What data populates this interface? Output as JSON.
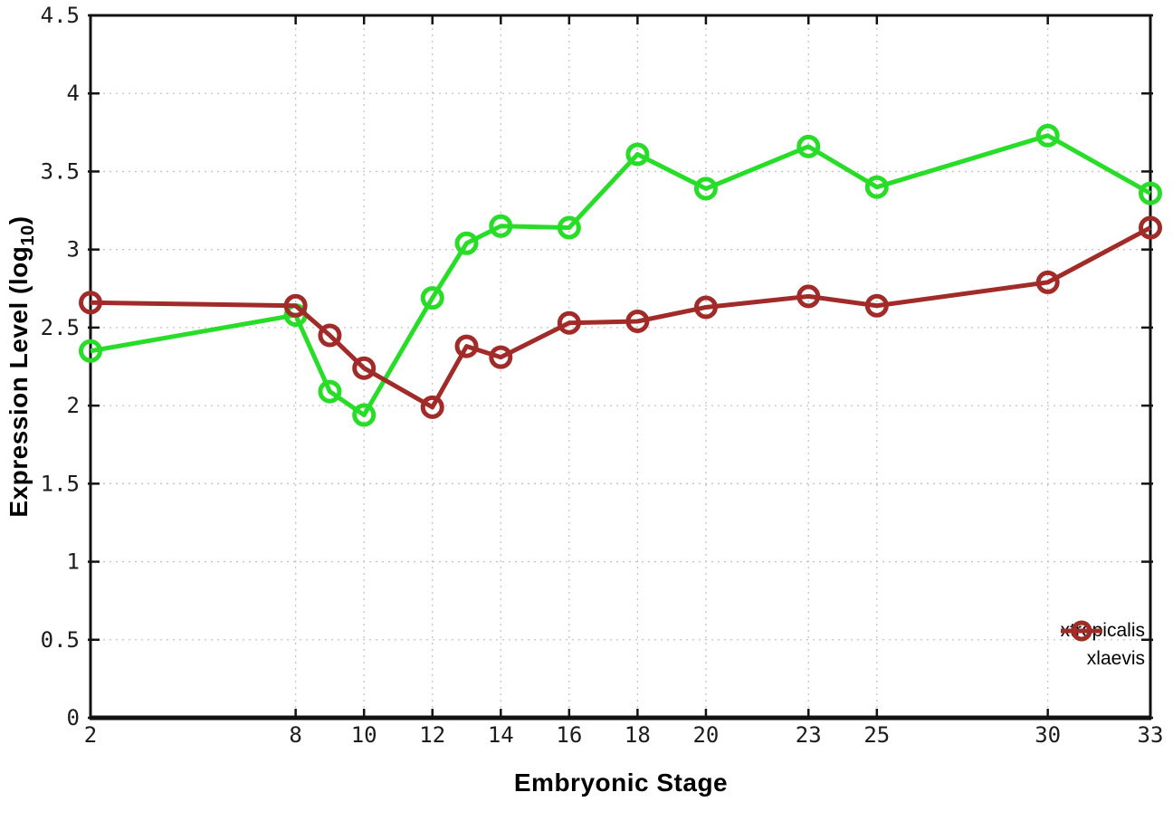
{
  "figure": {
    "xlabel": "Embryonic Stage",
    "ylabel": {
      "prefix": "Expression Level (log",
      "sub": "10",
      "suffix": ")"
    }
  },
  "chart_data": {
    "type": "line",
    "title": "",
    "xlabel": "Embryonic Stage",
    "ylabel": "Expression Level (log10)",
    "x": [
      2,
      8,
      9,
      10,
      12,
      13,
      14,
      16,
      18,
      20,
      23,
      25,
      30,
      33
    ],
    "series": [
      {
        "name": "xtropicalis",
        "color": "#27dd27",
        "values": [
          2.35,
          2.58,
          2.09,
          1.94,
          2.69,
          3.04,
          3.15,
          3.14,
          3.61,
          3.39,
          3.66,
          3.4,
          3.73,
          3.36
        ]
      },
      {
        "name": "xlaevis",
        "color": "#a12b28",
        "values": [
          2.66,
          2.64,
          2.45,
          2.24,
          1.99,
          2.38,
          2.31,
          2.53,
          2.54,
          2.63,
          2.7,
          2.64,
          2.79,
          3.14
        ]
      }
    ],
    "x_ticks": {
      "values": [
        2,
        8,
        10,
        12,
        14,
        16,
        18,
        20,
        23,
        25,
        30,
        33
      ],
      "labels": [
        "2",
        "8",
        "10",
        "12",
        "14",
        "16",
        "18",
        "20",
        "23",
        "25",
        "30",
        "33"
      ]
    },
    "y_ticks": {
      "values": [
        0,
        0.5,
        1,
        1.5,
        2,
        2.5,
        3,
        3.5,
        4,
        4.5
      ],
      "labels": [
        "0",
        "0.5",
        "1",
        "1.5",
        "2",
        "2.5",
        "3",
        "3.5",
        "4",
        "4.5"
      ]
    },
    "xlim": [
      2,
      33
    ],
    "ylim": [
      0,
      4.5
    ],
    "grid": true,
    "legend_position": "right-inside",
    "marker": "open-circle",
    "marker_radius": 10.5,
    "line_width": 5
  },
  "colors": {
    "background": "#ffffff",
    "border": "#121212",
    "grid": "#c4c4c4",
    "tick_label": "#1c1c1c"
  }
}
